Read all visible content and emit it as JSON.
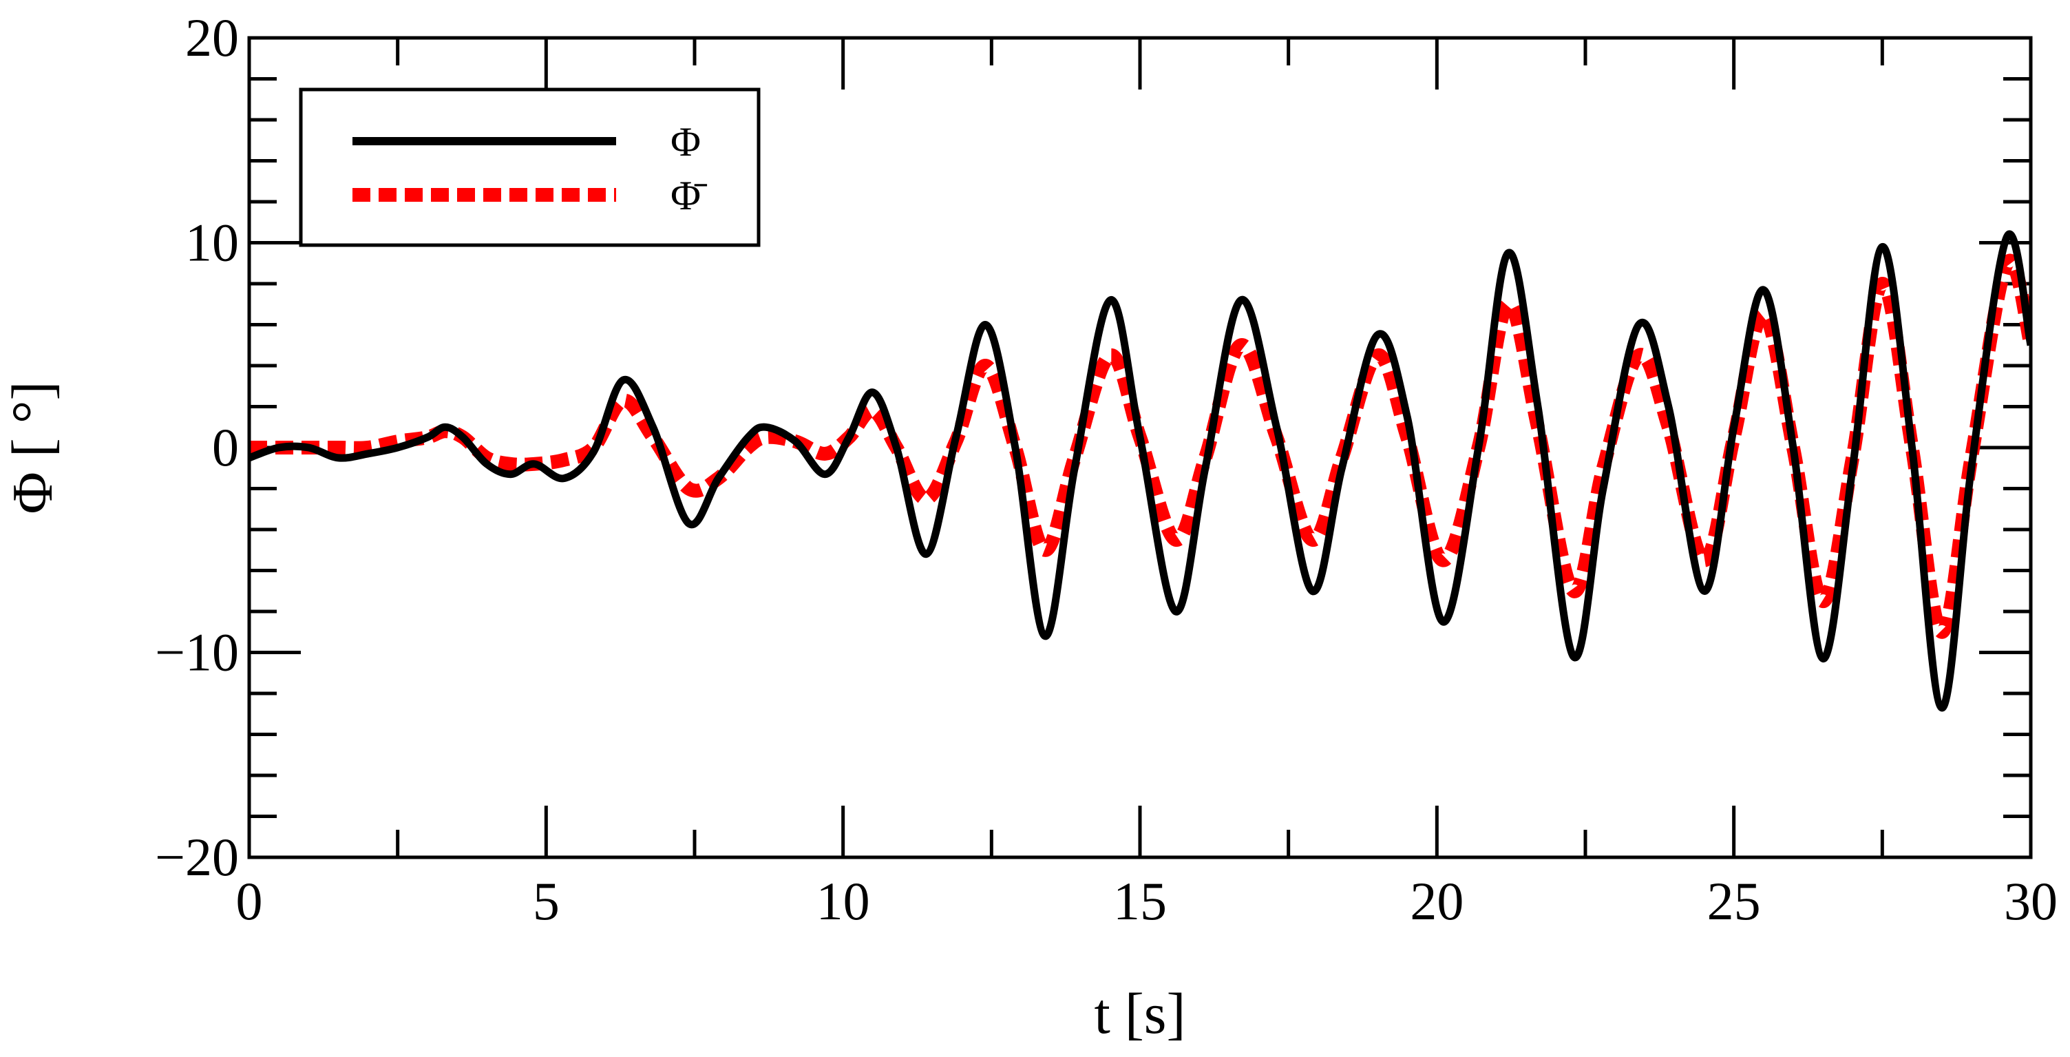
{
  "chart_data": {
    "type": "line",
    "title": "",
    "xlabel": "t [s]",
    "ylabel": "Φ [ °]",
    "xlim": [
      0,
      30
    ],
    "ylim": [
      -20,
      20
    ],
    "x_ticks": [
      0,
      5,
      10,
      15,
      20,
      25,
      30
    ],
    "y_ticks": [
      -20,
      -10,
      0,
      10,
      20
    ],
    "x_tick_labels": [
      "0",
      "5",
      "10",
      "15",
      "20",
      "25",
      "30"
    ],
    "y_tick_labels": [
      "−20",
      "−10",
      "0",
      "10",
      "20"
    ],
    "grid": false,
    "legend_position": "top-left",
    "series": [
      {
        "name": "Φ",
        "color": "#000000",
        "style": "solid",
        "x": [
          0,
          0.5,
          1,
          1.5,
          2,
          2.5,
          3,
          3.3,
          3.6,
          4,
          4.4,
          4.8,
          5.3,
          5.8,
          6.3,
          6.8,
          7.4,
          7.9,
          8.4,
          8.7,
          9.2,
          9.7,
          10.1,
          10.5,
          10.9,
          11.4,
          11.9,
          12.4,
          12.9,
          13.4,
          13.9,
          14.5,
          15,
          15.6,
          16.1,
          16.7,
          17.3,
          17.9,
          18.4,
          19,
          19.5,
          20.1,
          20.7,
          21.2,
          21.7,
          22.3,
          22.8,
          23.4,
          23.9,
          24.5,
          25,
          25.5,
          26,
          26.5,
          27,
          27.5,
          28,
          28.5,
          29,
          29.6,
          30
        ],
        "y": [
          -0.5,
          0,
          0,
          -0.5,
          -0.3,
          0,
          0.5,
          1,
          0.5,
          -0.8,
          -1.3,
          -0.8,
          -1.5,
          -0.2,
          3.3,
          1,
          -3.7,
          -1.5,
          0.5,
          1,
          0.3,
          -1.3,
          0.5,
          2.7,
          0,
          -5.2,
          0.5,
          6,
          0,
          -9.2,
          -1,
          7.2,
          0.5,
          -8,
          -1,
          7.2,
          1,
          -7,
          -1,
          5.5,
          1.5,
          -8.5,
          0,
          9.5,
          2,
          -10.2,
          -2,
          6,
          2,
          -7,
          1,
          7.7,
          0,
          -10.3,
          -1,
          9.8,
          0,
          -12.7,
          -1,
          10.3,
          5
        ]
      },
      {
        "name": "Φ̄",
        "color": "#ff0000",
        "style": "dashed",
        "x": [
          0,
          0.5,
          1,
          1.5,
          2,
          2.5,
          3,
          3.3,
          3.6,
          4,
          4.4,
          4.8,
          5.3,
          5.8,
          6.3,
          6.8,
          7.4,
          7.9,
          8.4,
          8.7,
          9.2,
          9.7,
          10.1,
          10.5,
          10.9,
          11.4,
          11.9,
          12.4,
          12.9,
          13.4,
          13.9,
          14.5,
          15,
          15.6,
          16.1,
          16.7,
          17.3,
          17.9,
          18.4,
          19,
          19.5,
          20.1,
          20.7,
          21.2,
          21.7,
          22.3,
          22.8,
          23.4,
          23.9,
          24.5,
          25,
          25.5,
          26,
          26.5,
          27,
          27.5,
          28,
          28.5,
          29,
          29.6,
          30
        ],
        "y": [
          0,
          0,
          0,
          0,
          0,
          0.3,
          0.5,
          0.8,
          0.5,
          -0.5,
          -0.8,
          -0.8,
          -0.6,
          0,
          2.3,
          0.5,
          -2,
          -1.5,
          0,
          0.5,
          0.3,
          -0.3,
          0.5,
          1.8,
          0,
          -2.5,
          0.3,
          4,
          0,
          -5,
          -0.5,
          4.5,
          0.5,
          -4.5,
          -0.5,
          5,
          0.5,
          -4.5,
          -0.5,
          4.5,
          0.5,
          -5.5,
          0,
          7,
          1,
          -7,
          -1,
          4.5,
          1,
          -5.5,
          0.5,
          6.5,
          0,
          -7.5,
          -0.5,
          8,
          0,
          -9,
          -0.5,
          9,
          5
        ]
      }
    ]
  }
}
